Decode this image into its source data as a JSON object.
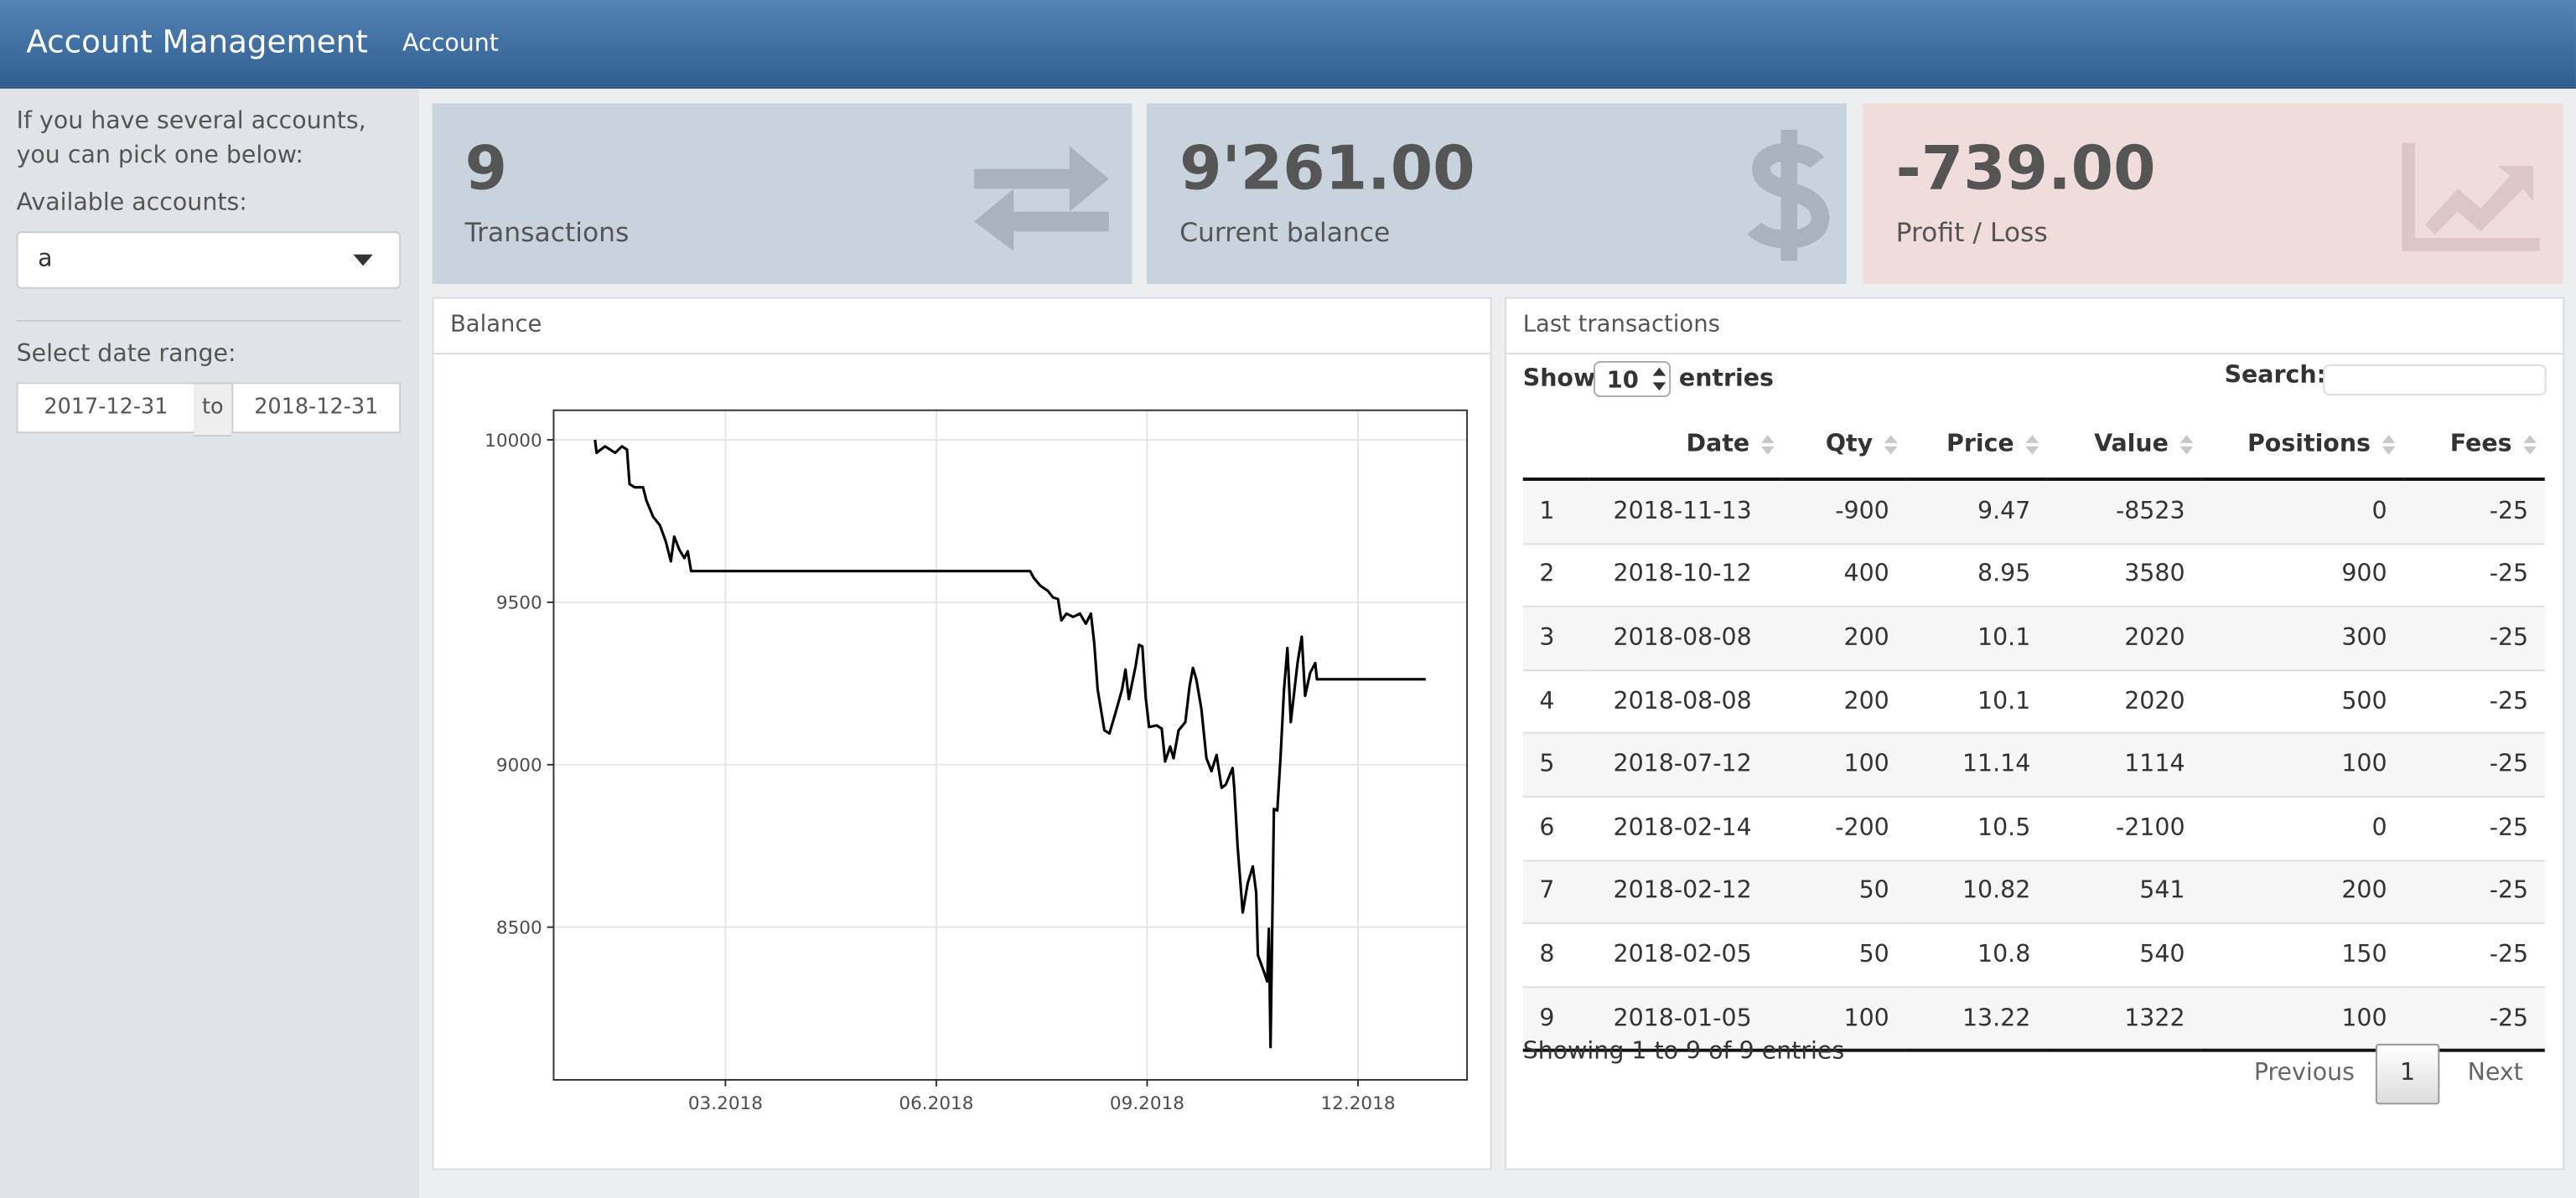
{
  "header": {
    "title": "Account Management",
    "nav": "Account"
  },
  "sidebar": {
    "intro": "If you have several accounts, you can pick one below:",
    "accounts_label": "Available accounts:",
    "account_selected": "a",
    "date_label": "Select date range:",
    "date_start": "2017-12-31",
    "date_sep": "to",
    "date_end": "2018-12-31"
  },
  "boxes": [
    {
      "value": "9",
      "label": "Transactions"
    },
    {
      "value": "9'261.00",
      "label": "Current balance"
    },
    {
      "value": "-739.00",
      "label": "Profit / Loss"
    }
  ],
  "balance_panel": {
    "title": "Balance"
  },
  "chart_data": {
    "type": "line",
    "color": "#000000",
    "grid": true,
    "x": [
      2018.012,
      2018.014,
      2018.024,
      2018.036,
      2018.044,
      2018.05,
      2018.053,
      2018.059,
      2018.069,
      2018.073,
      2018.081,
      2018.089,
      2018.096,
      2018.102,
      2018.106,
      2018.112,
      2018.118,
      2018.122,
      2018.126,
      2018.528,
      2018.532,
      2018.54,
      2018.549,
      2018.555,
      2018.561,
      2018.565,
      2018.571,
      2018.579,
      2018.587,
      2018.594,
      2018.6,
      2018.604,
      2018.608,
      2018.616,
      2018.622,
      2018.63,
      2018.637,
      2018.641,
      2018.645,
      2018.653,
      2018.657,
      2018.661,
      2018.665,
      2018.669,
      2018.678,
      2018.684,
      2018.688,
      2018.694,
      2018.698,
      2018.704,
      2018.712,
      2018.717,
      2018.721,
      2018.725,
      2018.731,
      2018.737,
      2018.743,
      2018.749,
      2018.755,
      2018.76,
      2018.768,
      2018.77,
      2018.774,
      2018.78,
      2018.786,
      2018.792,
      2018.796,
      2018.798,
      2018.805,
      2018.809,
      2018.811,
      2018.813,
      2018.817,
      2018.821,
      2018.825,
      2018.829,
      2018.833,
      2018.837,
      2018.841,
      2018.845,
      2018.85,
      2018.854,
      2018.86,
      2018.866,
      2018.868,
      2018.997
    ],
    "values": [
      10000,
      9960,
      9980,
      9960,
      9980,
      9970,
      9864,
      9854,
      9854,
      9813,
      9763,
      9737,
      9687,
      9626,
      9702,
      9662,
      9636,
      9657,
      9596,
      9596,
      9576,
      9551,
      9535,
      9515,
      9510,
      9444,
      9465,
      9455,
      9465,
      9434,
      9465,
      9374,
      9232,
      9106,
      9096,
      9167,
      9232,
      9293,
      9202,
      9303,
      9369,
      9364,
      9207,
      9116,
      9121,
      9111,
      9010,
      9056,
      9020,
      9106,
      9131,
      9242,
      9298,
      9263,
      9172,
      9020,
      8980,
      9030,
      8929,
      8939,
      8990,
      8929,
      8747,
      8545,
      8636,
      8687,
      8606,
      8414,
      8364,
      8333,
      8495,
      8131,
      8864,
      8859,
      9030,
      9232,
      9359,
      9131,
      9222,
      9313,
      9394,
      9212,
      9283,
      9313,
      9263,
      9263
    ],
    "xlim": [
      2017.963,
      2019.046
    ],
    "xticks": [
      {
        "value": 2018.1667,
        "label": "03.2018"
      },
      {
        "value": 2018.4167,
        "label": "06.2018"
      },
      {
        "value": 2018.6667,
        "label": "09.2018"
      },
      {
        "value": 2018.9167,
        "label": "12.2018"
      }
    ],
    "ylim": [
      8030,
      10091
    ],
    "yticks": [
      8500,
      9000,
      9500,
      10000
    ]
  },
  "transactions": {
    "title": "Last transactions",
    "show": "Show",
    "length": "10",
    "entries": "entries",
    "search": "Search:",
    "columns": [
      "Date",
      "Qty",
      "Price",
      "Value",
      "Positions",
      "Fees"
    ],
    "rows": [
      [
        "1",
        "2018-11-13",
        -900,
        9.47,
        -8523,
        0,
        -25
      ],
      [
        "2",
        "2018-10-12",
        400,
        8.95,
        3580,
        900,
        -25
      ],
      [
        "3",
        "2018-08-08",
        200,
        10.1,
        2020,
        300,
        -25
      ],
      [
        "4",
        "2018-08-08",
        200,
        10.1,
        2020,
        500,
        -25
      ],
      [
        "5",
        "2018-07-12",
        100,
        11.14,
        1114,
        100,
        -25
      ],
      [
        "6",
        "2018-02-14",
        -200,
        10.5,
        -2100,
        0,
        -25
      ],
      [
        "7",
        "2018-02-12",
        50,
        10.82,
        541,
        200,
        -25
      ],
      [
        "8",
        "2018-02-05",
        50,
        10.8,
        540,
        150,
        -25
      ],
      [
        "9",
        "2018-01-05",
        100,
        13.22,
        1322,
        100,
        -25
      ]
    ],
    "info": "Showing 1 to 9 of 9 entries",
    "prev": "Previous",
    "page": "1",
    "next": "Next"
  }
}
